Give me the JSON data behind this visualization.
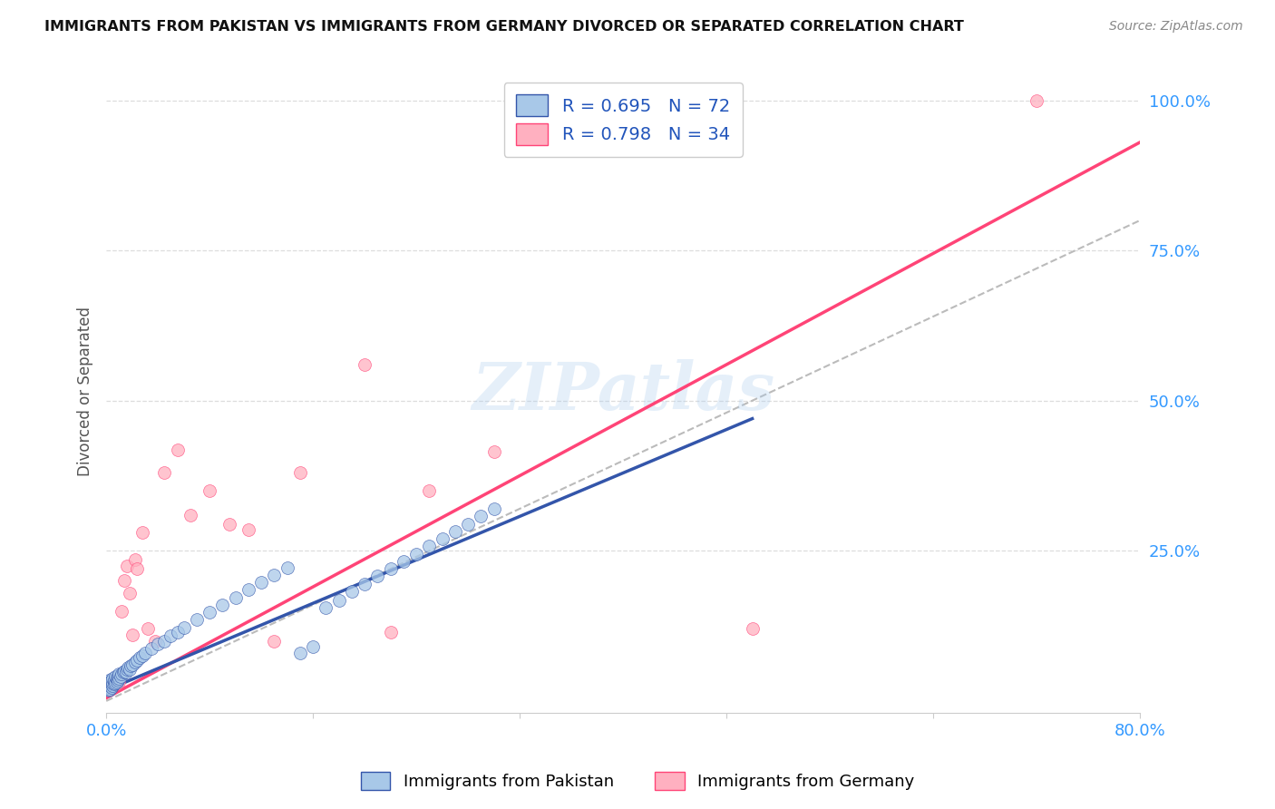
{
  "title": "IMMIGRANTS FROM PAKISTAN VS IMMIGRANTS FROM GERMANY DIVORCED OR SEPARATED CORRELATION CHART",
  "source": "Source: ZipAtlas.com",
  "ylabel": "Divorced or Separated",
  "legend_label1": "R = 0.695   N = 72",
  "legend_label2": "R = 0.798   N = 34",
  "legend_bottom_label1": "Immigrants from Pakistan",
  "legend_bottom_label2": "Immigrants from Germany",
  "pakistan_color": "#A8C8E8",
  "germany_color": "#FFB0C0",
  "pakistan_line_color": "#3355AA",
  "germany_line_color": "#FF4477",
  "dashed_line_color": "#BBBBBB",
  "watermark_text": "ZIPatlas",
  "background_color": "#FFFFFF",
  "grid_color": "#DDDDDD",
  "xlim": [
    0.0,
    0.8
  ],
  "ylim": [
    -0.02,
    1.05
  ],
  "pakistan_scatter_x": [
    0.001,
    0.001,
    0.001,
    0.002,
    0.002,
    0.002,
    0.002,
    0.003,
    0.003,
    0.003,
    0.003,
    0.004,
    0.004,
    0.004,
    0.005,
    0.005,
    0.005,
    0.006,
    0.006,
    0.007,
    0.007,
    0.008,
    0.008,
    0.009,
    0.009,
    0.01,
    0.01,
    0.011,
    0.012,
    0.013,
    0.014,
    0.015,
    0.016,
    0.017,
    0.018,
    0.019,
    0.02,
    0.022,
    0.024,
    0.026,
    0.028,
    0.03,
    0.035,
    0.04,
    0.045,
    0.05,
    0.055,
    0.06,
    0.07,
    0.08,
    0.09,
    0.1,
    0.11,
    0.12,
    0.13,
    0.14,
    0.15,
    0.16,
    0.17,
    0.18,
    0.19,
    0.2,
    0.21,
    0.22,
    0.23,
    0.24,
    0.25,
    0.26,
    0.27,
    0.28,
    0.29,
    0.3
  ],
  "pakistan_scatter_y": [
    0.02,
    0.025,
    0.03,
    0.018,
    0.022,
    0.03,
    0.035,
    0.02,
    0.025,
    0.028,
    0.032,
    0.022,
    0.028,
    0.035,
    0.025,
    0.03,
    0.038,
    0.028,
    0.035,
    0.03,
    0.04,
    0.032,
    0.038,
    0.035,
    0.042,
    0.038,
    0.045,
    0.04,
    0.045,
    0.048,
    0.05,
    0.048,
    0.052,
    0.055,
    0.052,
    0.058,
    0.06,
    0.065,
    0.068,
    0.072,
    0.075,
    0.08,
    0.088,
    0.095,
    0.1,
    0.108,
    0.115,
    0.122,
    0.135,
    0.148,
    0.16,
    0.172,
    0.185,
    0.198,
    0.21,
    0.222,
    0.08,
    0.09,
    0.155,
    0.168,
    0.182,
    0.195,
    0.208,
    0.22,
    0.232,
    0.245,
    0.258,
    0.27,
    0.282,
    0.295,
    0.308,
    0.32
  ],
  "germany_scatter_x": [
    0.001,
    0.002,
    0.003,
    0.004,
    0.005,
    0.006,
    0.007,
    0.008,
    0.009,
    0.01,
    0.012,
    0.014,
    0.016,
    0.018,
    0.02,
    0.022,
    0.024,
    0.028,
    0.032,
    0.038,
    0.045,
    0.055,
    0.065,
    0.08,
    0.095,
    0.11,
    0.13,
    0.15,
    0.2,
    0.22,
    0.25,
    0.3,
    0.5,
    0.72
  ],
  "germany_scatter_y": [
    0.022,
    0.025,
    0.022,
    0.028,
    0.025,
    0.03,
    0.032,
    0.028,
    0.035,
    0.032,
    0.15,
    0.2,
    0.225,
    0.18,
    0.11,
    0.235,
    0.22,
    0.28,
    0.12,
    0.1,
    0.38,
    0.418,
    0.31,
    0.35,
    0.295,
    0.285,
    0.1,
    0.38,
    0.56,
    0.115,
    0.35,
    0.415,
    0.12,
    1.0
  ],
  "pakistan_line_x": [
    0.0,
    0.5
  ],
  "pakistan_line_y": [
    0.018,
    0.47
  ],
  "germany_line_x": [
    0.0,
    0.8
  ],
  "germany_line_y": [
    0.005,
    0.93
  ],
  "dashed_line_x": [
    0.0,
    0.8
  ],
  "dashed_line_y": [
    0.0,
    0.8
  ]
}
